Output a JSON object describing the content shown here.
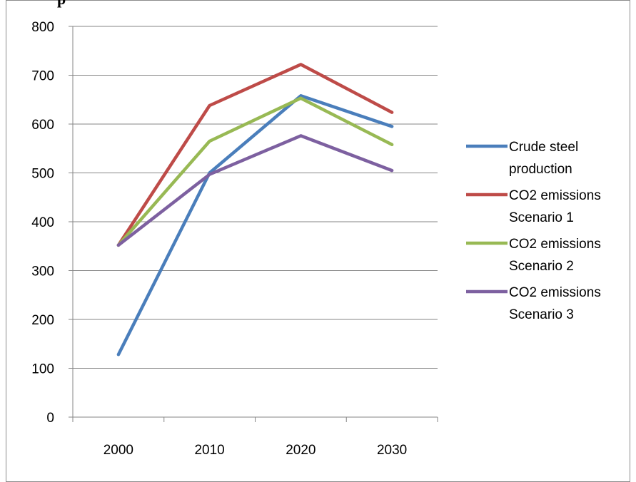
{
  "chart_data": {
    "type": "line",
    "title": "",
    "xlabel": "",
    "ylabel": "",
    "ylim": [
      0,
      800
    ],
    "ytick_step": 100,
    "grid": true,
    "legend_position": "right",
    "categories": [
      "2000",
      "2010",
      "2020",
      "2030"
    ],
    "series": [
      {
        "name": "Crude steel production",
        "legend_lines": [
          "Crude steel",
          "production"
        ],
        "color": "#4a7ebb",
        "values": [
          128,
          500,
          658,
          595
        ]
      },
      {
        "name": "CO2 emissions Scenario 1",
        "legend_lines": [
          "CO2 emissions",
          "Scenario 1"
        ],
        "color": "#be4b48",
        "values": [
          352,
          638,
          722,
          624
        ]
      },
      {
        "name": "CO2 emissions Scenario 2",
        "legend_lines": [
          "CO2 emissions",
          "Scenario 2"
        ],
        "color": "#98b954",
        "values": [
          352,
          565,
          653,
          558
        ]
      },
      {
        "name": "CO2 emissions Scenario 3",
        "legend_lines": [
          "CO2 emissions",
          "Scenario 3"
        ],
        "color": "#7d60a0",
        "values": [
          352,
          497,
          576,
          505
        ]
      }
    ]
  }
}
